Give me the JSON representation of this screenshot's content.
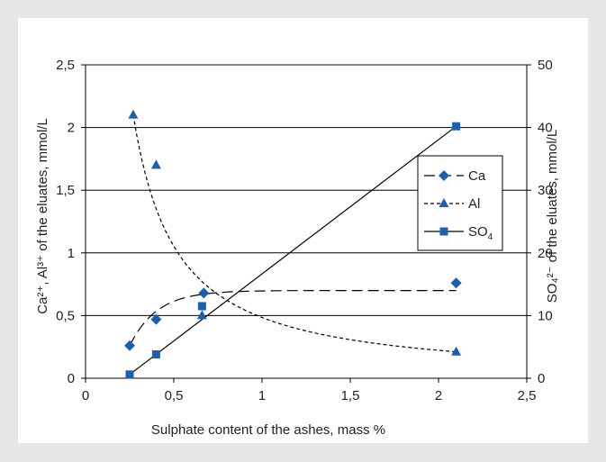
{
  "chart_data": {
    "type": "scatter",
    "xlabel": "Sulphate content of the ashes, mass %",
    "ylabel_left": "Ca²⁺, Al³⁺ of the eluates, mmol/L",
    "ylabel_right": "SO₄²⁻ of the eluates, mmol/L",
    "xlim": [
      0,
      2.5
    ],
    "ylim_left": [
      0,
      2.5
    ],
    "ylim_right": [
      0,
      50
    ],
    "x_ticks": [
      "0",
      "0,5",
      "1",
      "1,5",
      "2",
      "2,5"
    ],
    "y_left_ticks": [
      "0",
      "0,5",
      "1",
      "1,5",
      "2",
      "2,5"
    ],
    "y_right_ticks": [
      "0",
      "10",
      "20",
      "30",
      "40",
      "50"
    ],
    "grid": "horizontal",
    "legend_position": "right",
    "series": [
      {
        "name": "Ca",
        "axis": "left",
        "marker": "diamond",
        "line": "long-dash",
        "x": [
          0.25,
          0.4,
          0.67,
          2.1
        ],
        "y": [
          0.26,
          0.47,
          0.68,
          0.76
        ]
      },
      {
        "name": "Al",
        "axis": "left",
        "marker": "triangle",
        "line": "short-dash",
        "x": [
          0.27,
          0.4,
          0.66,
          2.1
        ],
        "y": [
          2.1,
          1.7,
          0.5,
          0.21
        ]
      },
      {
        "name": "SO4",
        "axis": "right",
        "marker": "square",
        "line": "solid",
        "x": [
          0.25,
          0.4,
          0.66,
          2.1
        ],
        "y": [
          0.6,
          3.8,
          11.5,
          40.2
        ]
      }
    ],
    "colors": {
      "marker": "#1f5ea8",
      "line": "#000000",
      "grid": "#000000"
    }
  }
}
